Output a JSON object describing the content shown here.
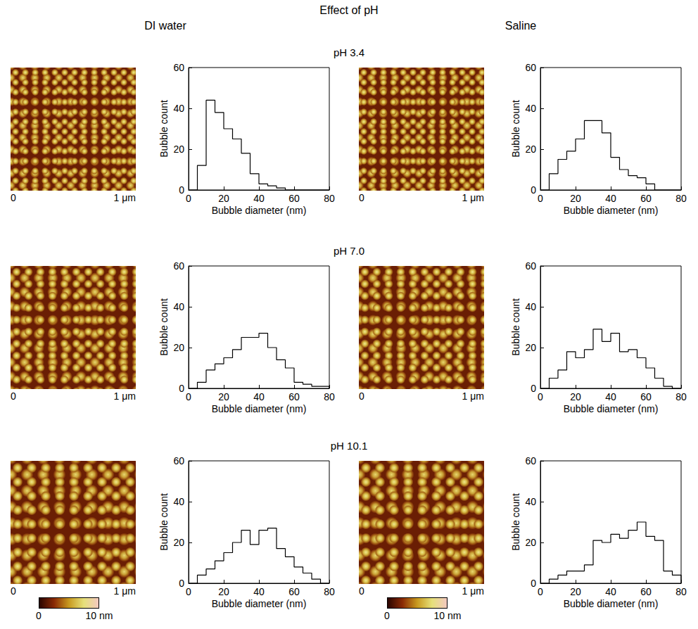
{
  "figure": {
    "title": "Effect of pH",
    "column_titles": [
      "DI water",
      "Saline"
    ],
    "row_titles": [
      "pH 3.4",
      "pH 7.0",
      "pH 10.1"
    ]
  },
  "afm_images": [
    {
      "x_labels": [
        "0",
        "1 μm"
      ]
    },
    {
      "x_labels": [
        "0",
        "1 μm"
      ]
    },
    {
      "x_labels": [
        "0",
        "1 μm"
      ]
    },
    {
      "x_labels": [
        "0",
        "1 μm"
      ]
    },
    {
      "x_labels": [
        "0",
        "1 μm"
      ]
    },
    {
      "x_labels": [
        "0",
        "1 μm"
      ]
    }
  ],
  "colorbars": [
    {
      "range": [
        0,
        10
      ],
      "ticks": [
        0,
        {
          "value": 10,
          "label": "10 nm"
        }
      ],
      "colors": [
        "#2a0500",
        "#8a2a05",
        "#c89a20",
        "#e6e07a",
        "#f3c9c0"
      ]
    },
    {
      "range": [
        0,
        10
      ],
      "ticks": [
        0,
        {
          "value": 10,
          "label": "10 nm"
        }
      ],
      "colors": [
        "#2a0500",
        "#8a2a05",
        "#c89a20",
        "#e6e07a",
        "#f3c9c0"
      ]
    }
  ],
  "chart_data": [
    {
      "type": "histogram",
      "xlabel": "Bubble diameter (nm)",
      "ylabel": "Bubble count",
      "color": "#000000",
      "bins": [
        0,
        5,
        10,
        15,
        20,
        25,
        30,
        35,
        40,
        45,
        50,
        55,
        60,
        65,
        70,
        75,
        80
      ],
      "counts": [
        0,
        12,
        44,
        38,
        30,
        25,
        18,
        8,
        3,
        2,
        1,
        0,
        0,
        0,
        0,
        0
      ],
      "xlim": [
        0,
        80
      ],
      "xticks": [
        0,
        20,
        40,
        60,
        80
      ],
      "ylim": [
        0,
        60
      ],
      "yticks": [
        0,
        20,
        40,
        60
      ]
    },
    {
      "type": "histogram",
      "xlabel": "Bubble diameter (nm)",
      "ylabel": "Bubble count",
      "color": "#000000",
      "bins": [
        0,
        5,
        10,
        15,
        20,
        25,
        30,
        35,
        40,
        45,
        50,
        55,
        60,
        65,
        70,
        75,
        80
      ],
      "counts": [
        0,
        8,
        15,
        19,
        25,
        34,
        34,
        28,
        16,
        10,
        7,
        6,
        3,
        0,
        0,
        0
      ],
      "xlim": [
        0,
        80
      ],
      "xticks": [
        0,
        20,
        40,
        60,
        80
      ],
      "ylim": [
        0,
        60
      ],
      "yticks": [
        0,
        20,
        40,
        60
      ]
    },
    {
      "type": "histogram",
      "xlabel": "Bubble diameter (nm)",
      "ylabel": "Bubble count",
      "color": "#000000",
      "bins": [
        0,
        5,
        10,
        15,
        20,
        25,
        30,
        35,
        40,
        45,
        50,
        55,
        60,
        65,
        70,
        75,
        80
      ],
      "counts": [
        0,
        3,
        9,
        12,
        15,
        19,
        25,
        25,
        27,
        20,
        14,
        10,
        3,
        2,
        1,
        1
      ],
      "xlim": [
        0,
        80
      ],
      "xticks": [
        0,
        20,
        40,
        60,
        80
      ],
      "ylim": [
        0,
        60
      ],
      "yticks": [
        0,
        20,
        40,
        60
      ]
    },
    {
      "type": "histogram",
      "xlabel": "Bubble diameter (nm)",
      "ylabel": "Bubble count",
      "color": "#000000",
      "bins": [
        0,
        5,
        10,
        15,
        20,
        25,
        30,
        35,
        40,
        45,
        50,
        55,
        60,
        65,
        70,
        75,
        80
      ],
      "counts": [
        0,
        5,
        9,
        18,
        15,
        19,
        29,
        23,
        27,
        18,
        19,
        15,
        10,
        5,
        1,
        0
      ],
      "xlim": [
        0,
        80
      ],
      "xticks": [
        0,
        20,
        40,
        60,
        80
      ],
      "ylim": [
        0,
        60
      ],
      "yticks": [
        0,
        20,
        40,
        60
      ]
    },
    {
      "type": "histogram",
      "xlabel": "Bubble diameter (nm)",
      "ylabel": "Bubble count",
      "color": "#000000",
      "bins": [
        0,
        5,
        10,
        15,
        20,
        25,
        30,
        35,
        40,
        45,
        50,
        55,
        60,
        65,
        70,
        75,
        80
      ],
      "counts": [
        0,
        4,
        7,
        11,
        15,
        20,
        26,
        19,
        26,
        27,
        17,
        13,
        8,
        5,
        2,
        0
      ],
      "xlim": [
        0,
        80
      ],
      "xticks": [
        0,
        20,
        40,
        60,
        80
      ],
      "ylim": [
        0,
        60
      ],
      "yticks": [
        0,
        20,
        40,
        60
      ]
    },
    {
      "type": "histogram",
      "xlabel": "Bubble diameter (nm)",
      "ylabel": "Bubble count",
      "color": "#000000",
      "bins": [
        0,
        5,
        10,
        15,
        20,
        25,
        30,
        35,
        40,
        45,
        50,
        55,
        60,
        65,
        70,
        75,
        80
      ],
      "counts": [
        0,
        2,
        4,
        6,
        6,
        9,
        21,
        20,
        24,
        22,
        26,
        30,
        23,
        21,
        6,
        4
      ],
      "xlim": [
        0,
        80
      ],
      "xticks": [
        0,
        20,
        40,
        60,
        80
      ],
      "ylim": [
        0,
        60
      ],
      "yticks": [
        0,
        20,
        40,
        60
      ]
    }
  ]
}
